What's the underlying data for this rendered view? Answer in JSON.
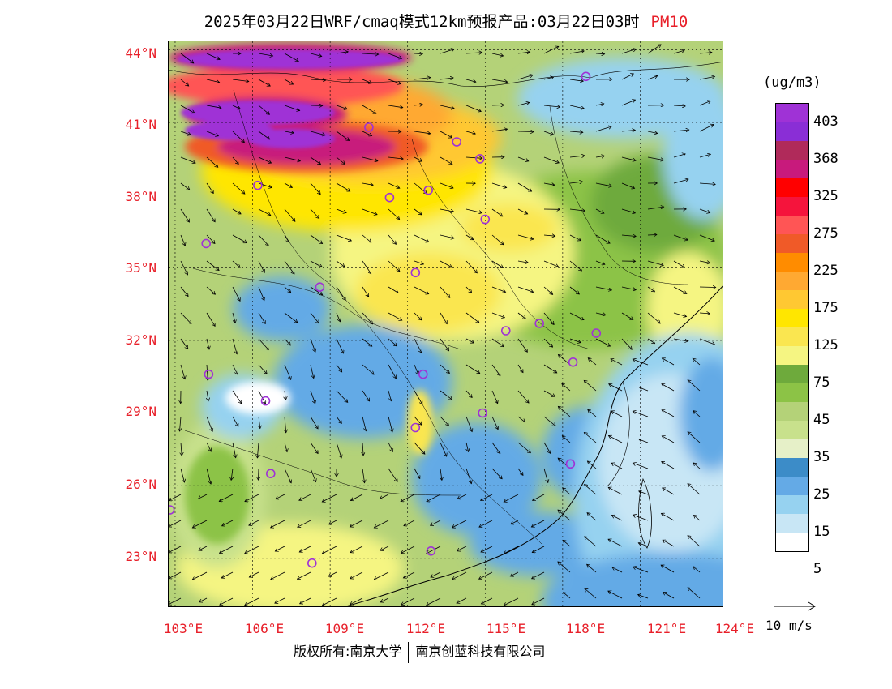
{
  "header": {
    "title": "2025年03月22日WRF/cmaq模式12km预报产品:03月22日03时",
    "pollutant": "PM10"
  },
  "map": {
    "lat_labels": [
      "44°N",
      "41°N",
      "38°N",
      "35°N",
      "32°N",
      "29°N",
      "26°N",
      "23°N"
    ],
    "lon_labels": [
      "103°E",
      "106°E",
      "109°E",
      "112°E",
      "115°E",
      "118°E",
      "121°E",
      "124°E"
    ],
    "stations": [
      {
        "lon": 118.9,
        "lat": 42.9
      },
      {
        "lon": 110.5,
        "lat": 40.8
      },
      {
        "lon": 113.9,
        "lat": 40.2
      },
      {
        "lon": 114.8,
        "lat": 39.5
      },
      {
        "lon": 106.2,
        "lat": 38.4
      },
      {
        "lon": 111.3,
        "lat": 37.9
      },
      {
        "lon": 112.8,
        "lat": 38.2
      },
      {
        "lon": 115.0,
        "lat": 37.0
      },
      {
        "lon": 104.2,
        "lat": 36.0
      },
      {
        "lon": 112.3,
        "lat": 34.8
      },
      {
        "lon": 108.6,
        "lat": 34.2
      },
      {
        "lon": 115.8,
        "lat": 32.4
      },
      {
        "lon": 117.1,
        "lat": 32.7
      },
      {
        "lon": 119.3,
        "lat": 32.3
      },
      {
        "lon": 118.4,
        "lat": 31.1
      },
      {
        "lon": 104.3,
        "lat": 30.6
      },
      {
        "lon": 112.6,
        "lat": 30.6
      },
      {
        "lon": 106.5,
        "lat": 29.5
      },
      {
        "lon": 114.9,
        "lat": 29.0
      },
      {
        "lon": 112.3,
        "lat": 28.4
      },
      {
        "lon": 118.3,
        "lat": 26.9
      },
      {
        "lon": 106.7,
        "lat": 26.5
      },
      {
        "lon": 102.8,
        "lat": 25.0
      },
      {
        "lon": 108.3,
        "lat": 22.8
      },
      {
        "lon": 112.9,
        "lat": 23.3
      }
    ]
  },
  "colorbar": {
    "unit": "(ug/m3)",
    "colors": [
      "#9f32d6",
      "#8a2ed6",
      "#b02a5a",
      "#c81a7c",
      "#ff0000",
      "#f5143c",
      "#ff5555",
      "#f05a28",
      "#ff8c00",
      "#ffa932",
      "#ffc832",
      "#ffe600",
      "#fae650",
      "#f5f582",
      "#6eaa3c",
      "#8cc346",
      "#b4d278",
      "#c8e18c",
      "#e6f0c8",
      "#3c8cc8",
      "#64aae6",
      "#96d2f0",
      "#c8e6f5",
      "#ffffff"
    ],
    "labels": [
      "403",
      "368",
      "325",
      "275",
      "225",
      "175",
      "125",
      "75",
      "45",
      "35",
      "25",
      "15",
      "5"
    ]
  },
  "wind_scale": {
    "label": "10 m/s"
  },
  "footer": {
    "copyright": "版权所有:南京大学",
    "company": "南京创蓝科技有限公司"
  }
}
